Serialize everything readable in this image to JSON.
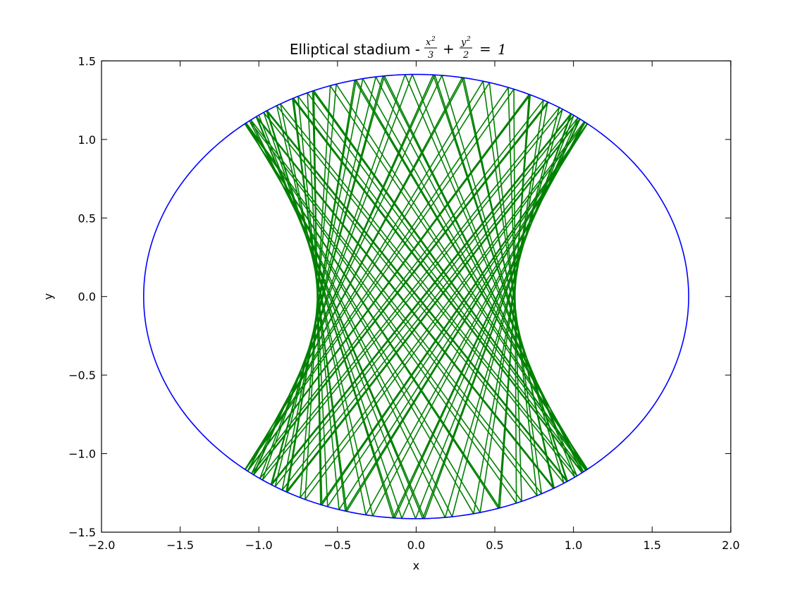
{
  "chart_data": {
    "type": "line",
    "title": "Elliptical stadium - ",
    "title_math": {
      "x_num": "x",
      "x_exp": "2",
      "x_den": "3",
      "plus": "+",
      "y_num": "y",
      "y_exp": "2",
      "y_den": "2",
      "equals": "=",
      "rhs": "1"
    },
    "xlabel": "x",
    "ylabel": "y",
    "xlim": [
      -2.0,
      2.0
    ],
    "ylim": [
      -1.5,
      1.5
    ],
    "xticks": [
      "−2.0",
      "−1.5",
      "−1.0",
      "−0.5",
      "0.0",
      "0.5",
      "1.0",
      "1.5",
      "2.0"
    ],
    "xtick_values": [
      -2.0,
      -1.5,
      -1.0,
      -0.5,
      0.0,
      0.5,
      1.0,
      1.5,
      2.0
    ],
    "yticks": [
      "−1.5",
      "−1.0",
      "−0.5",
      "0.0",
      "0.5",
      "1.0",
      "1.5"
    ],
    "ytick_values": [
      -1.5,
      -1.0,
      -0.5,
      0.0,
      0.5,
      1.0,
      1.5
    ],
    "grid": false,
    "series": [
      {
        "kind": "ellipse",
        "equation": {
          "a_squared": 3,
          "b_squared": 2
        },
        "color": "#0000ff"
      },
      {
        "kind": "billiard-trajectory",
        "color": "#008000",
        "start": {
          "x": -1.0,
          "y": 1.1547
        },
        "initial_angle_deg": -68.8,
        "bounces": 110
      }
    ]
  }
}
